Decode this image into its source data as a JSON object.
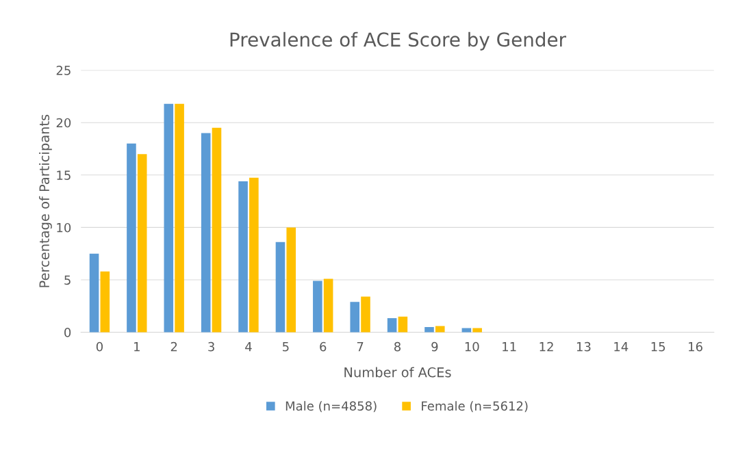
{
  "chart_data": {
    "type": "bar",
    "title": "Prevalence of ACE Score by Gender",
    "xlabel": "Number of ACEs",
    "ylabel": "Percentage of Participants",
    "categories": [
      "0",
      "1",
      "2",
      "3",
      "4",
      "5",
      "6",
      "7",
      "8",
      "9",
      "10",
      "11",
      "12",
      "13",
      "14",
      "15",
      "16"
    ],
    "series": [
      {
        "name": "Male (n=4858)",
        "color": "#5b9bd5",
        "values": [
          7.5,
          18.0,
          21.8,
          19.0,
          14.4,
          8.6,
          4.9,
          2.9,
          1.35,
          0.5,
          0.4,
          0,
          0,
          0,
          0,
          0,
          0
        ]
      },
      {
        "name": "Female (n=5612)",
        "color": "#ffc000",
        "values": [
          5.8,
          17.0,
          21.8,
          19.5,
          14.75,
          10.0,
          5.1,
          3.4,
          1.5,
          0.6,
          0.4,
          0,
          0,
          0,
          0,
          0,
          0
        ]
      }
    ],
    "ylim": [
      0,
      25
    ],
    "yticks": [
      0,
      5,
      10,
      15,
      20,
      25
    ],
    "grid": "y",
    "legend": "bottom"
  }
}
